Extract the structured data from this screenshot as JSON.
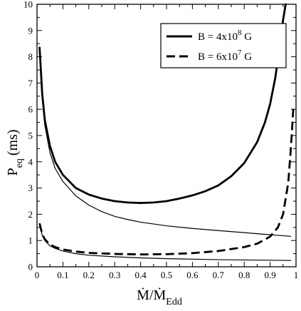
{
  "chart_data": {
    "type": "line",
    "xlim": [
      0,
      1
    ],
    "ylim": [
      0,
      10
    ],
    "x_ticks": [
      "0",
      "0.1",
      "0.2",
      "0.3",
      "0.4",
      "0.5",
      "0.6",
      "0.7",
      "0.8",
      "0.9",
      "1"
    ],
    "y_ticks": [
      "0",
      "1",
      "2",
      "3",
      "4",
      "5",
      "6",
      "7",
      "8",
      "9",
      "10"
    ],
    "xlabel": {
      "main": "Ṁ/Ṁ",
      "sub": "Edd"
    },
    "ylabel": {
      "main": "P",
      "sub": "eq",
      "unit": "(ms)"
    },
    "grid": false,
    "legend_position": "top-right",
    "legend": [
      {
        "label": "B = 4x10",
        "sup": "8",
        "tail": " G",
        "style": "solid"
      },
      {
        "label": "B = 6x10",
        "sup": "7",
        "tail": " G",
        "style": "dashed"
      }
    ],
    "series": [
      {
        "style": "solid",
        "weight": "thick",
        "points": [
          [
            0.01,
            8.35
          ],
          [
            0.02,
            6.6
          ],
          [
            0.03,
            5.6
          ],
          [
            0.05,
            4.6
          ],
          [
            0.07,
            4.0
          ],
          [
            0.1,
            3.5
          ],
          [
            0.15,
            3.0
          ],
          [
            0.2,
            2.75
          ],
          [
            0.25,
            2.6
          ],
          [
            0.3,
            2.5
          ],
          [
            0.35,
            2.45
          ],
          [
            0.4,
            2.43
          ],
          [
            0.45,
            2.45
          ],
          [
            0.5,
            2.5
          ],
          [
            0.55,
            2.6
          ],
          [
            0.6,
            2.72
          ],
          [
            0.65,
            2.88
          ],
          [
            0.7,
            3.1
          ],
          [
            0.75,
            3.45
          ],
          [
            0.8,
            3.95
          ],
          [
            0.85,
            4.75
          ],
          [
            0.88,
            5.5
          ],
          [
            0.9,
            6.2
          ],
          [
            0.92,
            7.2
          ],
          [
            0.94,
            8.6
          ],
          [
            0.95,
            9.4
          ],
          [
            0.96,
            10.0
          ]
        ]
      },
      {
        "style": "solid",
        "weight": "thin",
        "points": [
          [
            0.01,
            8.35
          ],
          [
            0.02,
            6.4
          ],
          [
            0.03,
            5.4
          ],
          [
            0.05,
            4.35
          ],
          [
            0.07,
            3.75
          ],
          [
            0.1,
            3.25
          ],
          [
            0.15,
            2.7
          ],
          [
            0.2,
            2.35
          ],
          [
            0.25,
            2.1
          ],
          [
            0.3,
            1.92
          ],
          [
            0.35,
            1.8
          ],
          [
            0.4,
            1.7
          ],
          [
            0.5,
            1.56
          ],
          [
            0.6,
            1.46
          ],
          [
            0.7,
            1.38
          ],
          [
            0.8,
            1.3
          ],
          [
            0.9,
            1.22
          ],
          [
            0.98,
            1.16
          ]
        ]
      },
      {
        "style": "dashed",
        "weight": "thick",
        "points": [
          [
            0.01,
            1.65
          ],
          [
            0.02,
            1.25
          ],
          [
            0.03,
            1.05
          ],
          [
            0.05,
            0.85
          ],
          [
            0.07,
            0.75
          ],
          [
            0.1,
            0.66
          ],
          [
            0.15,
            0.58
          ],
          [
            0.2,
            0.53
          ],
          [
            0.3,
            0.49
          ],
          [
            0.4,
            0.47
          ],
          [
            0.5,
            0.48
          ],
          [
            0.6,
            0.52
          ],
          [
            0.7,
            0.6
          ],
          [
            0.8,
            0.75
          ],
          [
            0.85,
            0.88
          ],
          [
            0.9,
            1.15
          ],
          [
            0.93,
            1.5
          ],
          [
            0.95,
            2.0
          ],
          [
            0.97,
            3.2
          ],
          [
            0.98,
            4.5
          ],
          [
            0.99,
            6.1
          ]
        ]
      },
      {
        "style": "solid",
        "weight": "thin",
        "points": [
          [
            0.01,
            1.65
          ],
          [
            0.02,
            1.2
          ],
          [
            0.03,
            1.0
          ],
          [
            0.05,
            0.8
          ],
          [
            0.07,
            0.7
          ],
          [
            0.1,
            0.6
          ],
          [
            0.15,
            0.5
          ],
          [
            0.2,
            0.44
          ],
          [
            0.3,
            0.38
          ],
          [
            0.4,
            0.34
          ],
          [
            0.5,
            0.31
          ],
          [
            0.6,
            0.29
          ],
          [
            0.7,
            0.27
          ],
          [
            0.8,
            0.26
          ],
          [
            0.9,
            0.25
          ],
          [
            0.98,
            0.24
          ]
        ]
      }
    ]
  }
}
